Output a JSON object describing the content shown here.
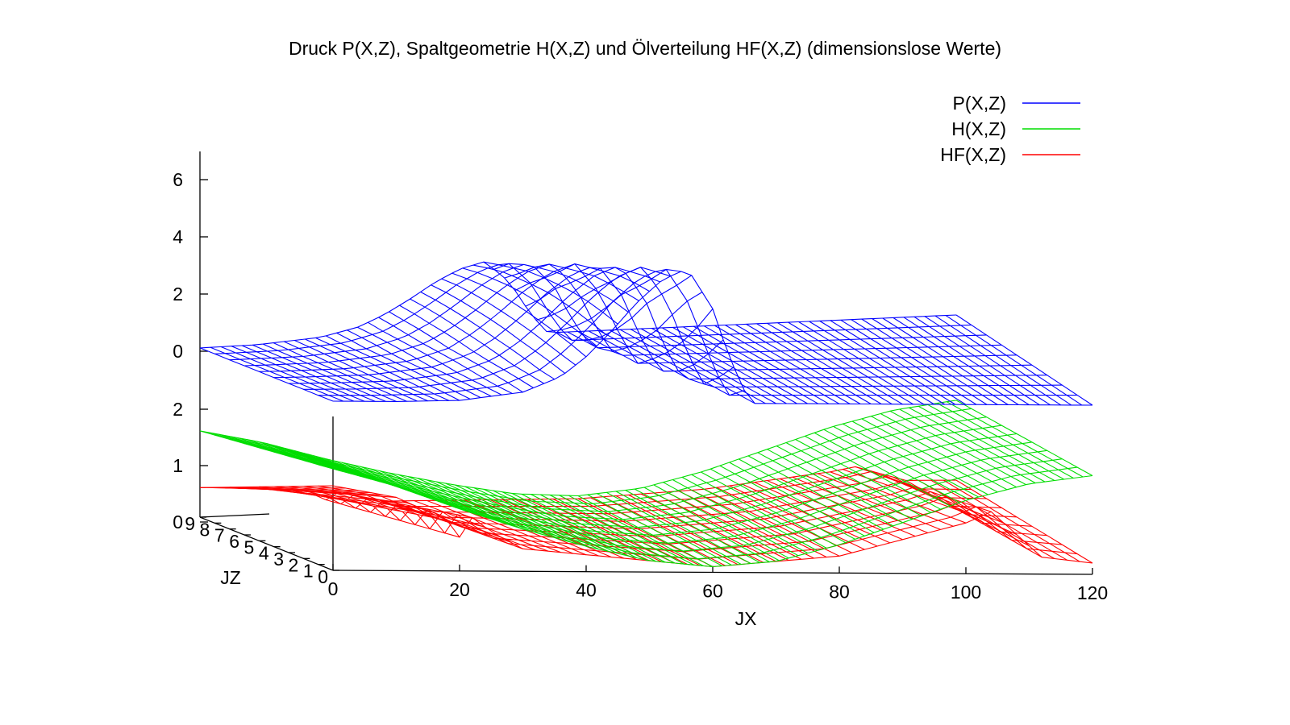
{
  "chart_data": {
    "type": "surface",
    "title": "Druck P(X,Z), Spaltgeometrie H(X,Z) und Ölverteilung HF(X,Z) (dimensionslose Werte)",
    "xlabel": "JX",
    "ylabel": "JZ",
    "x_ticks": [
      "0",
      "20",
      "40",
      "60",
      "80",
      "100",
      "120"
    ],
    "y_ticks": [
      "0",
      "1",
      "2",
      "3",
      "4",
      "5",
      "6",
      "7",
      "8",
      "9"
    ],
    "z_ticks_upper": [
      "0",
      "2",
      "4",
      "6"
    ],
    "z_ticks_lower": [
      "0",
      "1",
      "2"
    ],
    "xlim": [
      0,
      120
    ],
    "ylim": [
      0,
      9
    ],
    "legend_position": "top-right",
    "series": [
      {
        "name": "P(X,Z)",
        "color": "#0000ff",
        "jz_profile": "decreasing from front edge (JZ=0) to back edge (JZ=9)",
        "x": [
          0,
          10,
          20,
          30,
          36,
          40,
          44,
          48,
          52,
          56,
          60,
          62,
          64,
          66,
          70,
          80,
          100,
          120
        ],
        "values_front_edge": [
          0,
          0,
          0.05,
          0.35,
          0.9,
          1.6,
          2.5,
          3.5,
          4.3,
          4.7,
          3.3,
          2.0,
          0.9,
          0,
          0,
          0,
          0,
          0
        ]
      },
      {
        "name": "H(X,Z)",
        "color": "#00dd00",
        "x": [
          0,
          10,
          20,
          30,
          40,
          50,
          60,
          70,
          80,
          90,
          100,
          110,
          120
        ],
        "values": [
          1.8,
          1.5,
          1.1,
          0.75,
          0.45,
          0.2,
          0.1,
          0.2,
          0.5,
          0.9,
          1.3,
          1.6,
          1.75
        ]
      },
      {
        "name": "HF(X,Z)",
        "color": "#ff0000",
        "x": [
          0,
          10,
          14,
          18,
          20,
          22,
          25,
          30,
          40,
          60,
          80,
          90,
          100,
          104,
          108,
          112,
          120
        ],
        "values": [
          1.5,
          1.3,
          1.1,
          0.9,
          0.6,
          0.95,
          0.7,
          0.4,
          0.3,
          0.1,
          0.3,
          0.6,
          0.9,
          1.1,
          0.7,
          0.3,
          0.2
        ]
      }
    ]
  }
}
